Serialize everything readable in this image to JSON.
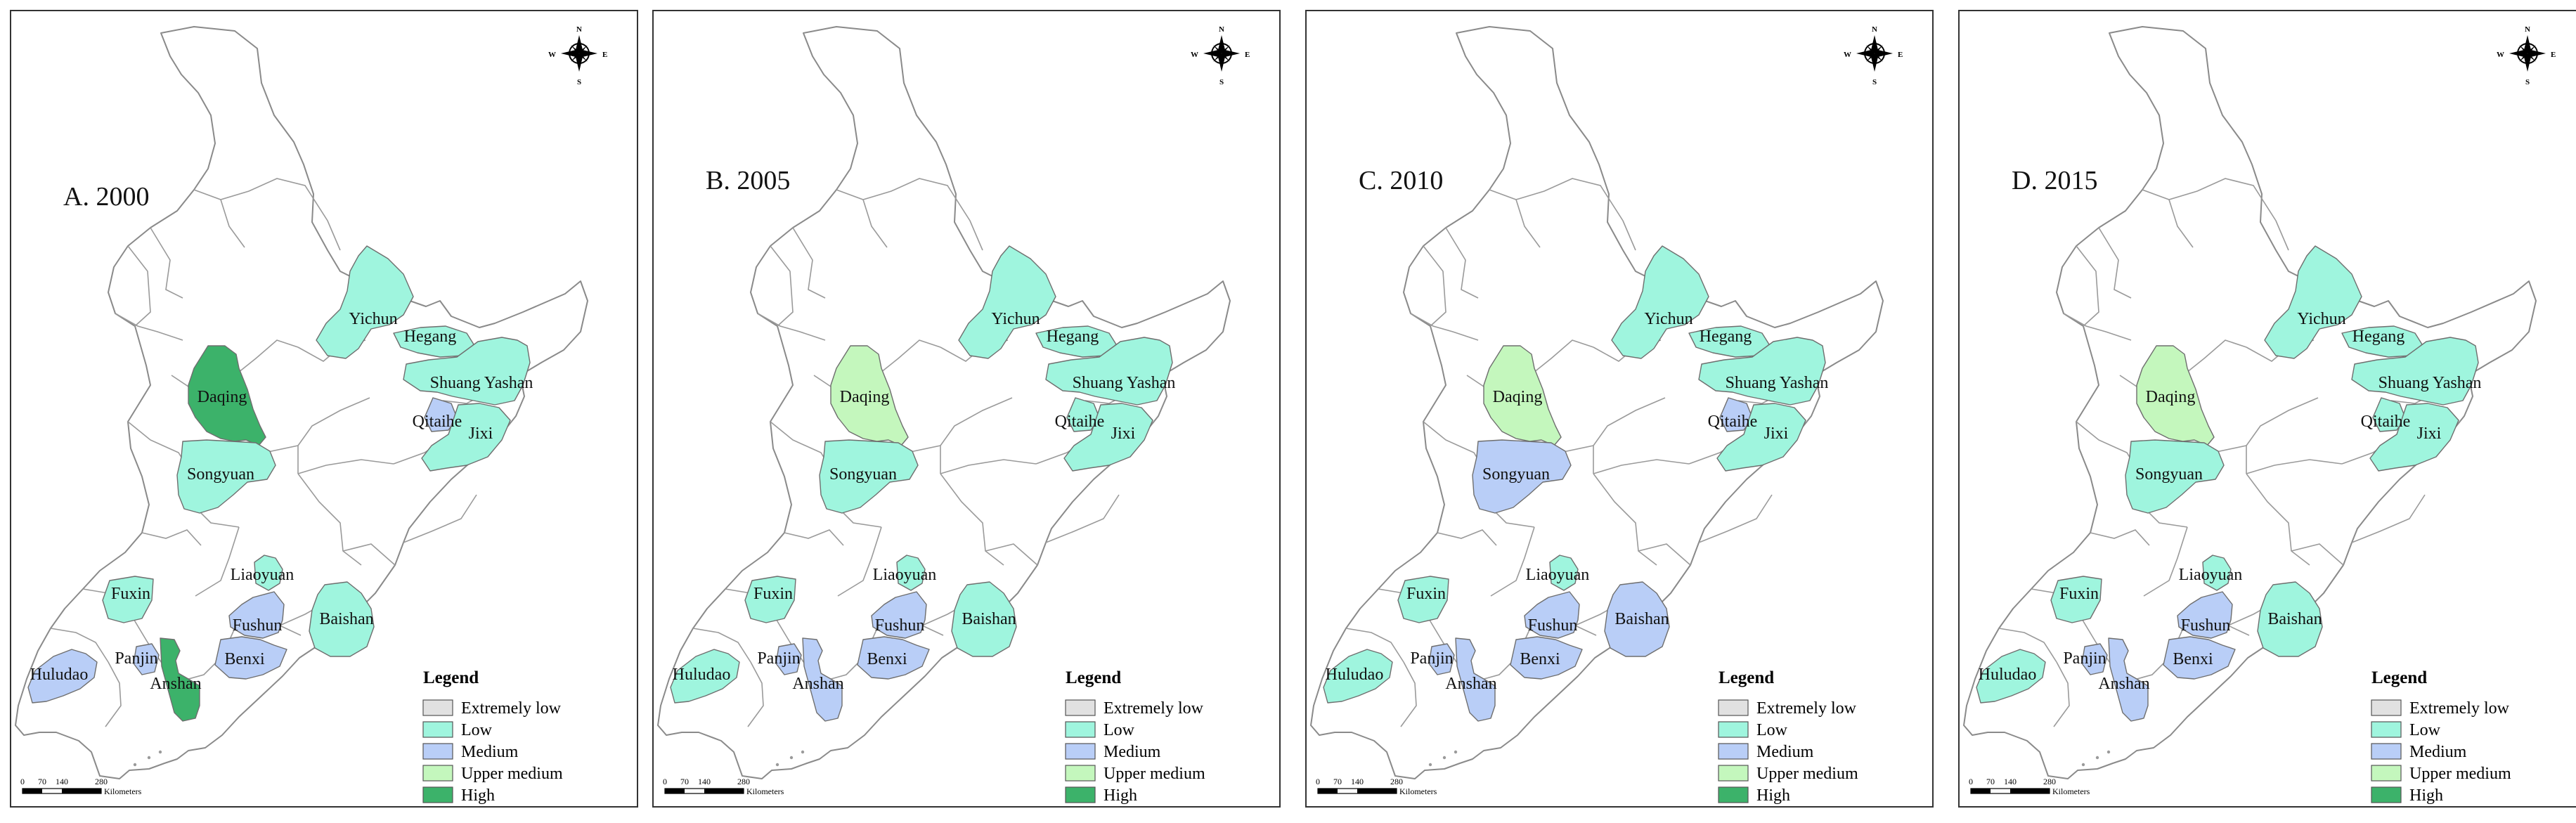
{
  "legend": {
    "title": "Legend",
    "classes": [
      {
        "key": "extremely_low",
        "label": "Extremely low",
        "color": "#e1e1e1"
      },
      {
        "key": "low",
        "label": "Low",
        "color": "#9ff5de"
      },
      {
        "key": "medium",
        "label": "Medium",
        "color": "#b9cef7"
      },
      {
        "key": "upper_medium",
        "label": "Upper medium",
        "color": "#c4f7bd"
      },
      {
        "key": "high",
        "label": "High",
        "color": "#3cb26a"
      }
    ]
  },
  "compass": {
    "n": "N",
    "s": "S",
    "e": "E",
    "w": "W"
  },
  "scale_bar": {
    "ticks": [
      "0",
      "70",
      "140",
      "280"
    ],
    "unit": "Kilometers"
  },
  "city_names": {
    "yichun": "Yichun",
    "hegang": "Hegang",
    "shuangyashan": "Shuang Yashan",
    "daqing": "Daqing",
    "qitaihe": "Qitaihe",
    "jixi": "Jixi",
    "songyuan": "Songyuan",
    "liaoyuan": "Liaoyuan",
    "fuxin": "Fuxin",
    "baishan": "Baishan",
    "fushun": "Fushun",
    "benxi": "Benxi",
    "panjin": "Panjin",
    "anshan": "Anshan",
    "huludao": "Huludao"
  },
  "panels": [
    {
      "title": "A. 2000",
      "classes": {
        "yichun": "low",
        "hegang": "low",
        "shuangyashan": "low",
        "jixi": "low",
        "qitaihe": "medium",
        "daqing": "high",
        "songyuan": "low",
        "liaoyuan": "low",
        "fuxin": "low",
        "baishan": "low",
        "fushun": "medium",
        "benxi": "medium",
        "panjin": "medium",
        "anshan": "high",
        "huludao": "medium"
      }
    },
    {
      "title": "B. 2005",
      "classes": {
        "yichun": "low",
        "hegang": "low",
        "shuangyashan": "low",
        "jixi": "low",
        "qitaihe": "low",
        "daqing": "upper_medium",
        "songyuan": "low",
        "liaoyuan": "low",
        "fuxin": "low",
        "baishan": "low",
        "fushun": "medium",
        "benxi": "medium",
        "panjin": "medium",
        "anshan": "medium",
        "huludao": "low"
      }
    },
    {
      "title": "C. 2010",
      "classes": {
        "yichun": "low",
        "hegang": "low",
        "shuangyashan": "low",
        "jixi": "low",
        "qitaihe": "medium",
        "daqing": "upper_medium",
        "songyuan": "medium",
        "liaoyuan": "low",
        "fuxin": "low",
        "baishan": "medium",
        "fushun": "medium",
        "benxi": "medium",
        "panjin": "medium",
        "anshan": "medium",
        "huludao": "low"
      }
    },
    {
      "title": "D. 2015",
      "classes": {
        "yichun": "low",
        "hegang": "low",
        "shuangyashan": "low",
        "jixi": "low",
        "qitaihe": "low",
        "daqing": "upper_medium",
        "songyuan": "low",
        "liaoyuan": "low",
        "fuxin": "low",
        "baishan": "low",
        "fushun": "medium",
        "benxi": "medium",
        "panjin": "medium",
        "anshan": "medium",
        "huludao": "low"
      }
    }
  ]
}
